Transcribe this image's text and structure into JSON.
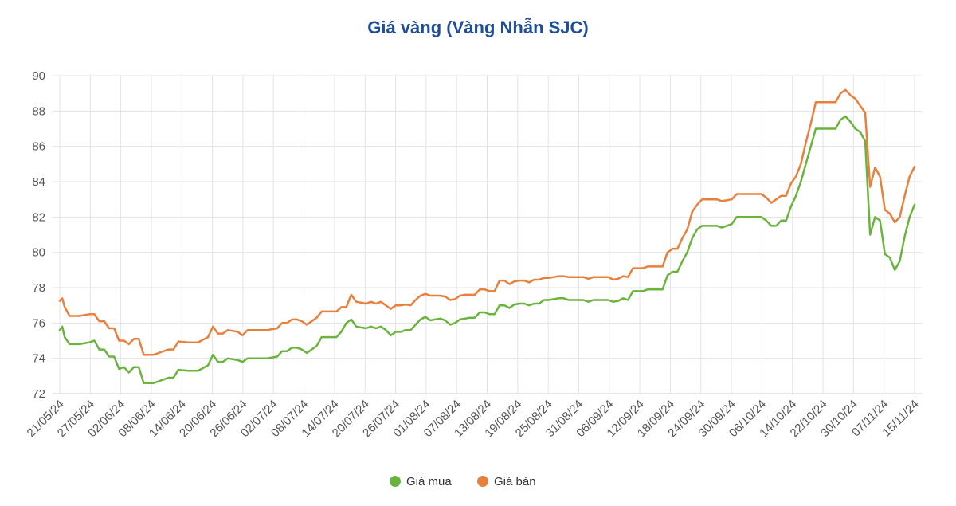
{
  "chart_data": {
    "type": "line",
    "title": "Giá vàng (Vàng Nhẫn SJC)",
    "xlabel": "",
    "ylabel": "",
    "ylim": [
      72,
      90
    ],
    "yticks": [
      72,
      74,
      76,
      78,
      80,
      82,
      84,
      86,
      88,
      90
    ],
    "grid": true,
    "legend": "bottom-center",
    "x_tick_labels": [
      "21/05/24",
      "27/05/24",
      "02/06/24",
      "08/06/24",
      "14/06/24",
      "20/06/24",
      "26/06/24",
      "02/07/24",
      "08/07/24",
      "14/07/24",
      "20/07/24",
      "26/07/24",
      "01/08/24",
      "07/08/24",
      "13/08/24",
      "19/08/24",
      "25/08/24",
      "31/08/24",
      "06/09/24",
      "12/09/24",
      "18/09/24",
      "24/09/24",
      "30/09/24",
      "06/10/24",
      "14/10/24",
      "22/10/24",
      "30/10/24",
      "07/11/24",
      "15/11/24"
    ],
    "series": [
      {
        "name": "Giá mua",
        "color": "#6ab43e",
        "points": [
          [
            0,
            75.6
          ],
          [
            0.25,
            75.8
          ],
          [
            0.5,
            75.2
          ],
          [
            1,
            74.8
          ],
          [
            2,
            74.8
          ],
          [
            3,
            74.9
          ],
          [
            3.5,
            75.0
          ],
          [
            4,
            74.5
          ],
          [
            4.5,
            74.5
          ],
          [
            5,
            74.1
          ],
          [
            5.5,
            74.1
          ],
          [
            6,
            73.4
          ],
          [
            6.5,
            73.5
          ],
          [
            7,
            73.2
          ],
          [
            7.5,
            73.5
          ],
          [
            8,
            73.5
          ],
          [
            8.5,
            72.6
          ],
          [
            9,
            72.6
          ],
          [
            9.5,
            72.6
          ],
          [
            10,
            72.7
          ],
          [
            11,
            72.9
          ],
          [
            11.5,
            72.9
          ],
          [
            12,
            73.35
          ],
          [
            13,
            73.3
          ],
          [
            14,
            73.3
          ],
          [
            15,
            73.6
          ],
          [
            15.5,
            74.2
          ],
          [
            16,
            73.8
          ],
          [
            16.5,
            73.8
          ],
          [
            17,
            74.0
          ],
          [
            18,
            73.9
          ],
          [
            18.5,
            73.8
          ],
          [
            19,
            74.0
          ],
          [
            20,
            74.0
          ],
          [
            21,
            74.0
          ],
          [
            22,
            74.1
          ],
          [
            22.5,
            74.4
          ],
          [
            23,
            74.4
          ],
          [
            23.5,
            74.6
          ],
          [
            24,
            74.6
          ],
          [
            24.5,
            74.5
          ],
          [
            25,
            74.3
          ],
          [
            26,
            74.7
          ],
          [
            26.5,
            75.2
          ],
          [
            27,
            75.2
          ],
          [
            28,
            75.2
          ],
          [
            28.5,
            75.5
          ],
          [
            29,
            76.0
          ],
          [
            29.5,
            76.2
          ],
          [
            30,
            75.8
          ],
          [
            31,
            75.7
          ],
          [
            31.5,
            75.8
          ],
          [
            32,
            75.7
          ],
          [
            32.5,
            75.8
          ],
          [
            33,
            75.6
          ],
          [
            33.5,
            75.3
          ],
          [
            34,
            75.5
          ],
          [
            34.5,
            75.5
          ],
          [
            35,
            75.6
          ],
          [
            35.5,
            75.6
          ],
          [
            36,
            75.9
          ],
          [
            36.5,
            76.2
          ],
          [
            37,
            76.35
          ],
          [
            37.5,
            76.15
          ],
          [
            38,
            76.2
          ],
          [
            38.5,
            76.25
          ],
          [
            39,
            76.15
          ],
          [
            39.5,
            75.9
          ],
          [
            40,
            76.0
          ],
          [
            40.5,
            76.2
          ],
          [
            41,
            76.25
          ],
          [
            41.5,
            76.3
          ],
          [
            42,
            76.3
          ],
          [
            42.5,
            76.6
          ],
          [
            43,
            76.6
          ],
          [
            43.5,
            76.5
          ],
          [
            44,
            76.5
          ],
          [
            44.5,
            77.0
          ],
          [
            45,
            77.0
          ],
          [
            45.5,
            76.85
          ],
          [
            46,
            77.05
          ],
          [
            46.5,
            77.1
          ],
          [
            47,
            77.1
          ],
          [
            47.5,
            77.0
          ],
          [
            48,
            77.1
          ],
          [
            48.5,
            77.1
          ],
          [
            49,
            77.3
          ],
          [
            49.5,
            77.3
          ],
          [
            50,
            77.35
          ],
          [
            50.5,
            77.4
          ],
          [
            51,
            77.4
          ],
          [
            51.5,
            77.3
          ],
          [
            52,
            77.3
          ],
          [
            53,
            77.3
          ],
          [
            53.5,
            77.2
          ],
          [
            54,
            77.3
          ],
          [
            55,
            77.3
          ],
          [
            55.5,
            77.3
          ],
          [
            56,
            77.2
          ],
          [
            56.5,
            77.25
          ],
          [
            57,
            77.4
          ],
          [
            57.5,
            77.3
          ],
          [
            58,
            77.8
          ],
          [
            58.5,
            77.8
          ],
          [
            59,
            77.8
          ],
          [
            59.5,
            77.9
          ],
          [
            60,
            77.9
          ],
          [
            60.5,
            77.9
          ],
          [
            61,
            77.9
          ],
          [
            61.5,
            78.7
          ],
          [
            62,
            78.9
          ],
          [
            62.5,
            78.9
          ],
          [
            63,
            79.5
          ],
          [
            63.5,
            80.0
          ],
          [
            64,
            80.8
          ],
          [
            64.5,
            81.3
          ],
          [
            65,
            81.5
          ],
          [
            65.5,
            81.5
          ],
          [
            66,
            81.5
          ],
          [
            66.5,
            81.5
          ],
          [
            67,
            81.4
          ],
          [
            68,
            81.6
          ],
          [
            68.5,
            82.0
          ],
          [
            69,
            82.0
          ],
          [
            70,
            82.0
          ],
          [
            71,
            82.0
          ],
          [
            71.5,
            81.8
          ],
          [
            72,
            81.5
          ],
          [
            72.5,
            81.5
          ],
          [
            73,
            81.8
          ],
          [
            73.5,
            81.8
          ],
          [
            74,
            82.6
          ],
          [
            74.5,
            83.2
          ],
          [
            75,
            84.0
          ],
          [
            75.5,
            85.0
          ],
          [
            76,
            86.0
          ],
          [
            76.5,
            87.0
          ],
          [
            77,
            87.0
          ],
          [
            78,
            87.0
          ],
          [
            78.5,
            87.0
          ],
          [
            79,
            87.5
          ],
          [
            79.5,
            87.7
          ],
          [
            80,
            87.4
          ],
          [
            80.5,
            87.0
          ],
          [
            81,
            86.8
          ],
          [
            81.5,
            86.3
          ],
          [
            82,
            81.0
          ],
          [
            82.5,
            82.0
          ],
          [
            83,
            81.8
          ],
          [
            83.5,
            79.9
          ],
          [
            84,
            79.7
          ],
          [
            84.5,
            79.0
          ],
          [
            85,
            79.5
          ],
          [
            85.5,
            80.9
          ],
          [
            86,
            82.0
          ],
          [
            86.5,
            82.7
          ]
        ]
      },
      {
        "name": "Giá bán",
        "color": "#e8803d",
        "points": [
          [
            0,
            77.25
          ],
          [
            0.25,
            77.4
          ],
          [
            0.5,
            76.9
          ],
          [
            1,
            76.4
          ],
          [
            2,
            76.4
          ],
          [
            3,
            76.5
          ],
          [
            3.5,
            76.5
          ],
          [
            4,
            76.1
          ],
          [
            4.5,
            76.1
          ],
          [
            5,
            75.7
          ],
          [
            5.5,
            75.7
          ],
          [
            6,
            75.0
          ],
          [
            6.5,
            75.0
          ],
          [
            7,
            74.8
          ],
          [
            7.5,
            75.1
          ],
          [
            8,
            75.1
          ],
          [
            8.5,
            74.2
          ],
          [
            9,
            74.2
          ],
          [
            9.5,
            74.2
          ],
          [
            10,
            74.3
          ],
          [
            11,
            74.5
          ],
          [
            11.5,
            74.5
          ],
          [
            12,
            74.95
          ],
          [
            13,
            74.9
          ],
          [
            14,
            74.9
          ],
          [
            15,
            75.2
          ],
          [
            15.5,
            75.8
          ],
          [
            16,
            75.4
          ],
          [
            16.5,
            75.4
          ],
          [
            17,
            75.6
          ],
          [
            18,
            75.5
          ],
          [
            18.5,
            75.3
          ],
          [
            19,
            75.6
          ],
          [
            20,
            75.6
          ],
          [
            21,
            75.6
          ],
          [
            22,
            75.7
          ],
          [
            22.5,
            76.0
          ],
          [
            23,
            76.0
          ],
          [
            23.5,
            76.2
          ],
          [
            24,
            76.2
          ],
          [
            24.5,
            76.1
          ],
          [
            25,
            75.9
          ],
          [
            26,
            76.3
          ],
          [
            26.5,
            76.65
          ],
          [
            27,
            76.65
          ],
          [
            28,
            76.65
          ],
          [
            28.5,
            76.9
          ],
          [
            29,
            76.9
          ],
          [
            29.5,
            77.6
          ],
          [
            30,
            77.2
          ],
          [
            31,
            77.1
          ],
          [
            31.5,
            77.2
          ],
          [
            32,
            77.1
          ],
          [
            32.5,
            77.2
          ],
          [
            33,
            77.0
          ],
          [
            33.5,
            76.8
          ],
          [
            34,
            77.0
          ],
          [
            34.5,
            77.0
          ],
          [
            35,
            77.05
          ],
          [
            35.5,
            77.0
          ],
          [
            36,
            77.3
          ],
          [
            36.5,
            77.55
          ],
          [
            37,
            77.65
          ],
          [
            37.5,
            77.55
          ],
          [
            38,
            77.55
          ],
          [
            38.5,
            77.55
          ],
          [
            39,
            77.5
          ],
          [
            39.5,
            77.3
          ],
          [
            40,
            77.35
          ],
          [
            40.5,
            77.55
          ],
          [
            41,
            77.6
          ],
          [
            41.5,
            77.6
          ],
          [
            42,
            77.6
          ],
          [
            42.5,
            77.9
          ],
          [
            43,
            77.9
          ],
          [
            43.5,
            77.8
          ],
          [
            44,
            77.8
          ],
          [
            44.5,
            78.4
          ],
          [
            45,
            78.4
          ],
          [
            45.5,
            78.2
          ],
          [
            46,
            78.35
          ],
          [
            46.5,
            78.4
          ],
          [
            47,
            78.4
          ],
          [
            47.5,
            78.3
          ],
          [
            48,
            78.45
          ],
          [
            48.5,
            78.45
          ],
          [
            49,
            78.55
          ],
          [
            49.5,
            78.55
          ],
          [
            50,
            78.6
          ],
          [
            50.5,
            78.65
          ],
          [
            51,
            78.65
          ],
          [
            51.5,
            78.6
          ],
          [
            52,
            78.6
          ],
          [
            53,
            78.6
          ],
          [
            53.5,
            78.5
          ],
          [
            54,
            78.6
          ],
          [
            55,
            78.6
          ],
          [
            55.5,
            78.6
          ],
          [
            56,
            78.45
          ],
          [
            56.5,
            78.5
          ],
          [
            57,
            78.65
          ],
          [
            57.5,
            78.6
          ],
          [
            58,
            79.1
          ],
          [
            58.5,
            79.1
          ],
          [
            59,
            79.1
          ],
          [
            59.5,
            79.2
          ],
          [
            60,
            79.2
          ],
          [
            60.5,
            79.2
          ],
          [
            61,
            79.2
          ],
          [
            61.5,
            80.0
          ],
          [
            62,
            80.2
          ],
          [
            62.5,
            80.2
          ],
          [
            63,
            80.8
          ],
          [
            63.5,
            81.3
          ],
          [
            64,
            82.3
          ],
          [
            64.5,
            82.7
          ],
          [
            65,
            83.0
          ],
          [
            65.5,
            83.0
          ],
          [
            66,
            83.0
          ],
          [
            66.5,
            83.0
          ],
          [
            67,
            82.9
          ],
          [
            68,
            83.0
          ],
          [
            68.5,
            83.3
          ],
          [
            69,
            83.3
          ],
          [
            70,
            83.3
          ],
          [
            71,
            83.3
          ],
          [
            71.5,
            83.1
          ],
          [
            72,
            82.8
          ],
          [
            72.5,
            83.0
          ],
          [
            73,
            83.2
          ],
          [
            73.5,
            83.2
          ],
          [
            74,
            83.9
          ],
          [
            74.5,
            84.3
          ],
          [
            75,
            85.0
          ],
          [
            75.5,
            86.2
          ],
          [
            76,
            87.3
          ],
          [
            76.5,
            88.5
          ],
          [
            77,
            88.5
          ],
          [
            78,
            88.5
          ],
          [
            78.5,
            88.5
          ],
          [
            79,
            89.0
          ],
          [
            79.5,
            89.2
          ],
          [
            80,
            88.9
          ],
          [
            80.5,
            88.7
          ],
          [
            81,
            88.3
          ],
          [
            81.5,
            87.9
          ],
          [
            82,
            83.7
          ],
          [
            82.5,
            84.8
          ],
          [
            83,
            84.3
          ],
          [
            83.5,
            82.4
          ],
          [
            84,
            82.2
          ],
          [
            84.5,
            81.7
          ],
          [
            85,
            82.0
          ],
          [
            85.5,
            83.2
          ],
          [
            86,
            84.3
          ],
          [
            86.5,
            84.85
          ]
        ]
      }
    ]
  }
}
